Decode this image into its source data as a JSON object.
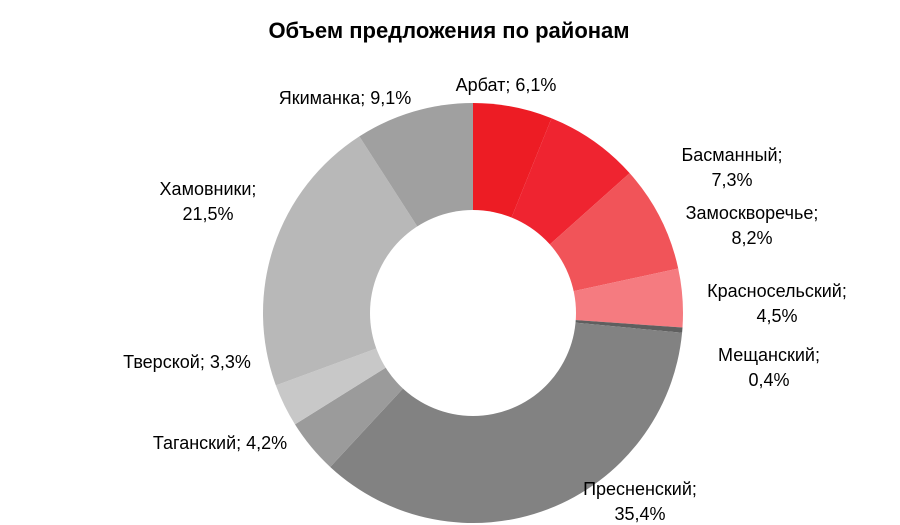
{
  "chart_data": {
    "type": "pie",
    "donut": true,
    "title": "Объем предложения по районам",
    "legend": "none",
    "slices": [
      {
        "category": "Арбат",
        "value": 6.1,
        "label_lines": [
          "Арбат; 6,1%"
        ],
        "color": "#ed1c24"
      },
      {
        "category": "Басманный",
        "value": 7.3,
        "label_lines": [
          "Басманный;",
          "7,3%"
        ],
        "color": "#ef2430"
      },
      {
        "category": "Замоскворечье",
        "value": 8.2,
        "label_lines": [
          "Замоскворечье;",
          "8,2%"
        ],
        "color": "#f15459"
      },
      {
        "category": "Красносельский",
        "value": 4.5,
        "label_lines": [
          "Красносельский;",
          "4,5%"
        ],
        "color": "#f57b80"
      },
      {
        "category": "Мещанский",
        "value": 0.4,
        "label_lines": [
          "Мещанский;",
          "0,4%"
        ],
        "color": "#5f5f5f"
      },
      {
        "category": "Пресненский",
        "value": 35.4,
        "label_lines": [
          "Пресненский;",
          "35,4%"
        ],
        "color": "#828282"
      },
      {
        "category": "Таганский",
        "value": 4.2,
        "label_lines": [
          "Таганский; 4,2%"
        ],
        "color": "#9b9b9b"
      },
      {
        "category": "Тверской",
        "value": 3.3,
        "label_lines": [
          "Тверской; 3,3%"
        ],
        "color": "#c8c8c8"
      },
      {
        "category": "Хамовники",
        "value": 21.5,
        "label_lines": [
          "Хамовники;",
          "21,5%"
        ],
        "color": "#b8b8b8"
      },
      {
        "category": "Якиманка",
        "value": 9.1,
        "label_lines": [
          "Якиманка; 9,1%"
        ],
        "color": "#a0a0a0"
      }
    ]
  }
}
